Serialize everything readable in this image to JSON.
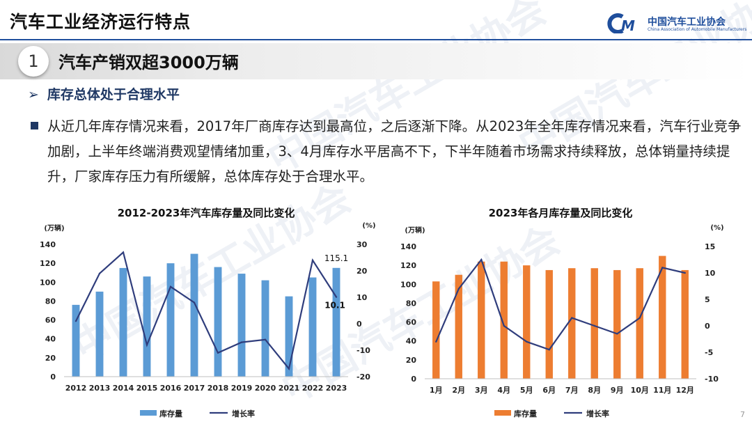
{
  "header": {
    "title": "汽车工业经济运行特点",
    "logo_cn": "中国汽车工业协会",
    "logo_en": "China Association of Automobile Manufacturers",
    "logo_mark": "CM"
  },
  "section": {
    "number": "1",
    "title": "汽车产销双超3000万辆"
  },
  "subheading": "库存总体处于合理水平",
  "paragraph": "从近几年库存情况来看，2017年厂商库存达到最高位，之后逐渐下降。从2023年全年库存情况来看，汽车行业竞争加剧，上半年终端消费观望情绪加重，3、4月库存水平居高不下，下半年随着市场需求持续释放，总体销量持续提升，厂家库存压力有所缓解，总体库存处于合理水平。",
  "watermark_text": "中国汽车工业协会",
  "page_number": "7",
  "colors": {
    "accent": "#1f4e9c",
    "bar_left": "#5b9bd5",
    "bar_right": "#ed7d31",
    "line": "#2f3d7c"
  },
  "chart_data": [
    {
      "type": "bar",
      "title": "2012-2023年汽车库存量及同比变化",
      "ylabel": "(万辆)",
      "y2label": "(%)",
      "categories": [
        "2012",
        "2013",
        "2014",
        "2015",
        "2016",
        "2017",
        "2018",
        "2019",
        "2020",
        "2021",
        "2022",
        "2023"
      ],
      "ylim": [
        0,
        140
      ],
      "yticks": [
        "0",
        "20",
        "40",
        "60",
        "80",
        "100",
        "120",
        "140"
      ],
      "y2lim": [
        -20,
        30
      ],
      "y2ticks": [
        "-20",
        "-10",
        "0",
        "10",
        "20",
        "30"
      ],
      "series": [
        {
          "name": "库存量",
          "kind": "bar",
          "axis": "left",
          "values": [
            76,
            90,
            115,
            106,
            120,
            130,
            116,
            109,
            102,
            85,
            105,
            115.1
          ]
        },
        {
          "name": "增长率",
          "kind": "line",
          "axis": "right",
          "values": [
            1,
            19,
            27,
            -8,
            14,
            8,
            -11,
            -7,
            -6,
            -17,
            24,
            10.1
          ]
        }
      ],
      "data_labels": [
        "115.1",
        "10.1"
      ],
      "legend": [
        "库存量",
        "增长率"
      ]
    },
    {
      "type": "bar",
      "title": "2023年各月库存量及同比变化",
      "ylabel": "(万辆)",
      "y2label": "(%)",
      "categories": [
        "1月",
        "2月",
        "3月",
        "4月",
        "5月",
        "6月",
        "7月",
        "8月",
        "9月",
        "10月",
        "11月",
        "12月"
      ],
      "ylim": [
        0,
        140
      ],
      "yticks": [
        "0",
        "20",
        "40",
        "60",
        "80",
        "100",
        "120",
        "140"
      ],
      "y2lim": [
        -10,
        15
      ],
      "y2ticks": [
        "-10",
        "-5",
        "0",
        "5",
        "10",
        "15"
      ],
      "series": [
        {
          "name": "库存量",
          "kind": "bar",
          "axis": "left",
          "values": [
            103,
            110,
            124,
            124,
            120,
            115,
            117,
            117,
            115,
            117,
            130,
            115
          ]
        },
        {
          "name": "增长率",
          "kind": "line",
          "axis": "right",
          "values": [
            -3,
            7,
            12.5,
            0,
            -3,
            -4.5,
            1.5,
            0,
            -1.5,
            1.5,
            11,
            10
          ]
        }
      ],
      "legend": [
        "库存量",
        "增长率"
      ]
    }
  ]
}
